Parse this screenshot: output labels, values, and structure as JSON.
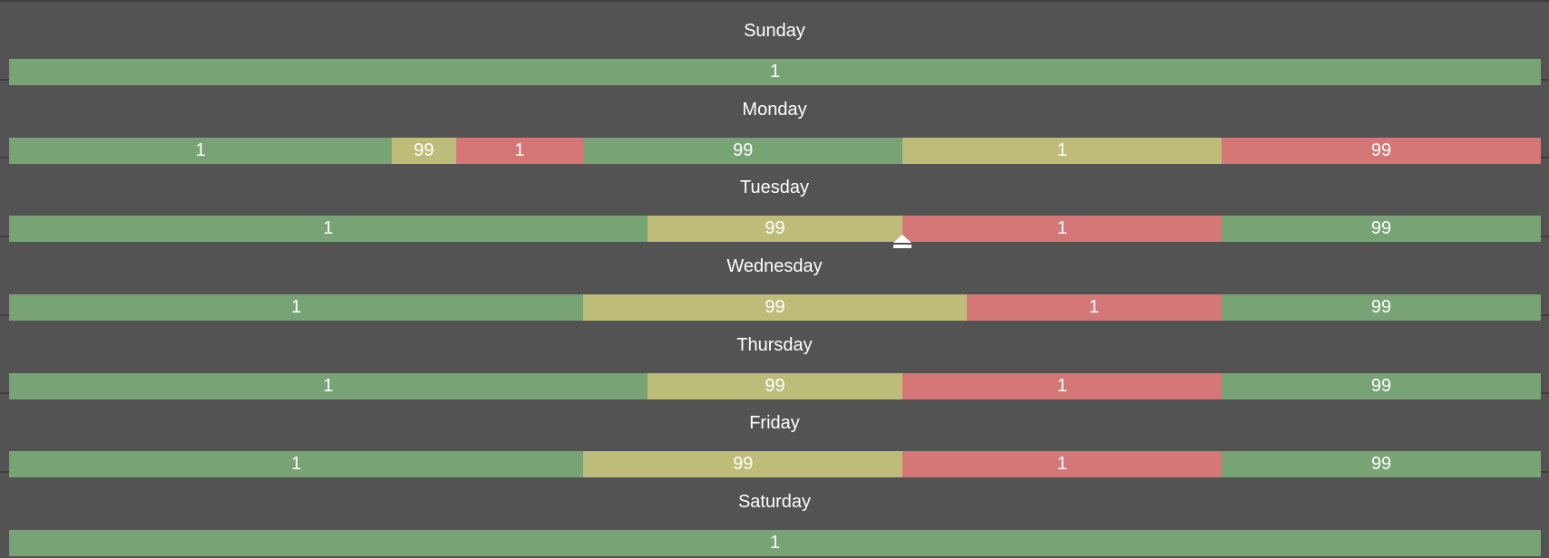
{
  "colors": {
    "background": "#535353",
    "divider": "#3e3e3e",
    "green": "#77a375",
    "yellow": "#bdbd79",
    "red": "#d57776",
    "text": "#ffffff"
  },
  "days": [
    {
      "id": "sunday",
      "label": "Sunday",
      "segments": [
        {
          "value": "1",
          "color": "green",
          "hours": 24
        }
      ]
    },
    {
      "id": "monday",
      "label": "Monday",
      "segments": [
        {
          "value": "1",
          "color": "green",
          "hours": 6
        },
        {
          "value": "99",
          "color": "yellow",
          "hours": 1
        },
        {
          "value": "1",
          "color": "red",
          "hours": 2
        },
        {
          "value": "99",
          "color": "green",
          "hours": 5
        },
        {
          "value": "1",
          "color": "yellow",
          "hours": 5
        },
        {
          "value": "99",
          "color": "red",
          "hours": 5
        }
      ]
    },
    {
      "id": "tuesday",
      "label": "Tuesday",
      "segments": [
        {
          "value": "1",
          "color": "green",
          "hours": 10
        },
        {
          "value": "99",
          "color": "yellow",
          "hours": 4
        },
        {
          "value": "1",
          "color": "red",
          "hours": 5
        },
        {
          "value": "99",
          "color": "green",
          "hours": 5
        }
      ]
    },
    {
      "id": "wednesday",
      "label": "Wednesday",
      "segments": [
        {
          "value": "1",
          "color": "green",
          "hours": 9
        },
        {
          "value": "99",
          "color": "yellow",
          "hours": 6
        },
        {
          "value": "1",
          "color": "red",
          "hours": 4
        },
        {
          "value": "99",
          "color": "green",
          "hours": 5
        }
      ]
    },
    {
      "id": "thursday",
      "label": "Thursday",
      "segments": [
        {
          "value": "1",
          "color": "green",
          "hours": 10
        },
        {
          "value": "99",
          "color": "yellow",
          "hours": 4
        },
        {
          "value": "1",
          "color": "red",
          "hours": 5
        },
        {
          "value": "99",
          "color": "green",
          "hours": 5
        }
      ]
    },
    {
      "id": "friday",
      "label": "Friday",
      "segments": [
        {
          "value": "1",
          "color": "green",
          "hours": 9
        },
        {
          "value": "99",
          "color": "yellow",
          "hours": 5
        },
        {
          "value": "1",
          "color": "red",
          "hours": 5
        },
        {
          "value": "99",
          "color": "green",
          "hours": 5
        }
      ]
    },
    {
      "id": "saturday",
      "label": "Saturday",
      "segments": [
        {
          "value": "1",
          "color": "green",
          "hours": 24
        }
      ]
    }
  ],
  "eject_handle": {
    "icon": "eject-handle-icon",
    "day": "tuesday",
    "after_hour": 14
  }
}
